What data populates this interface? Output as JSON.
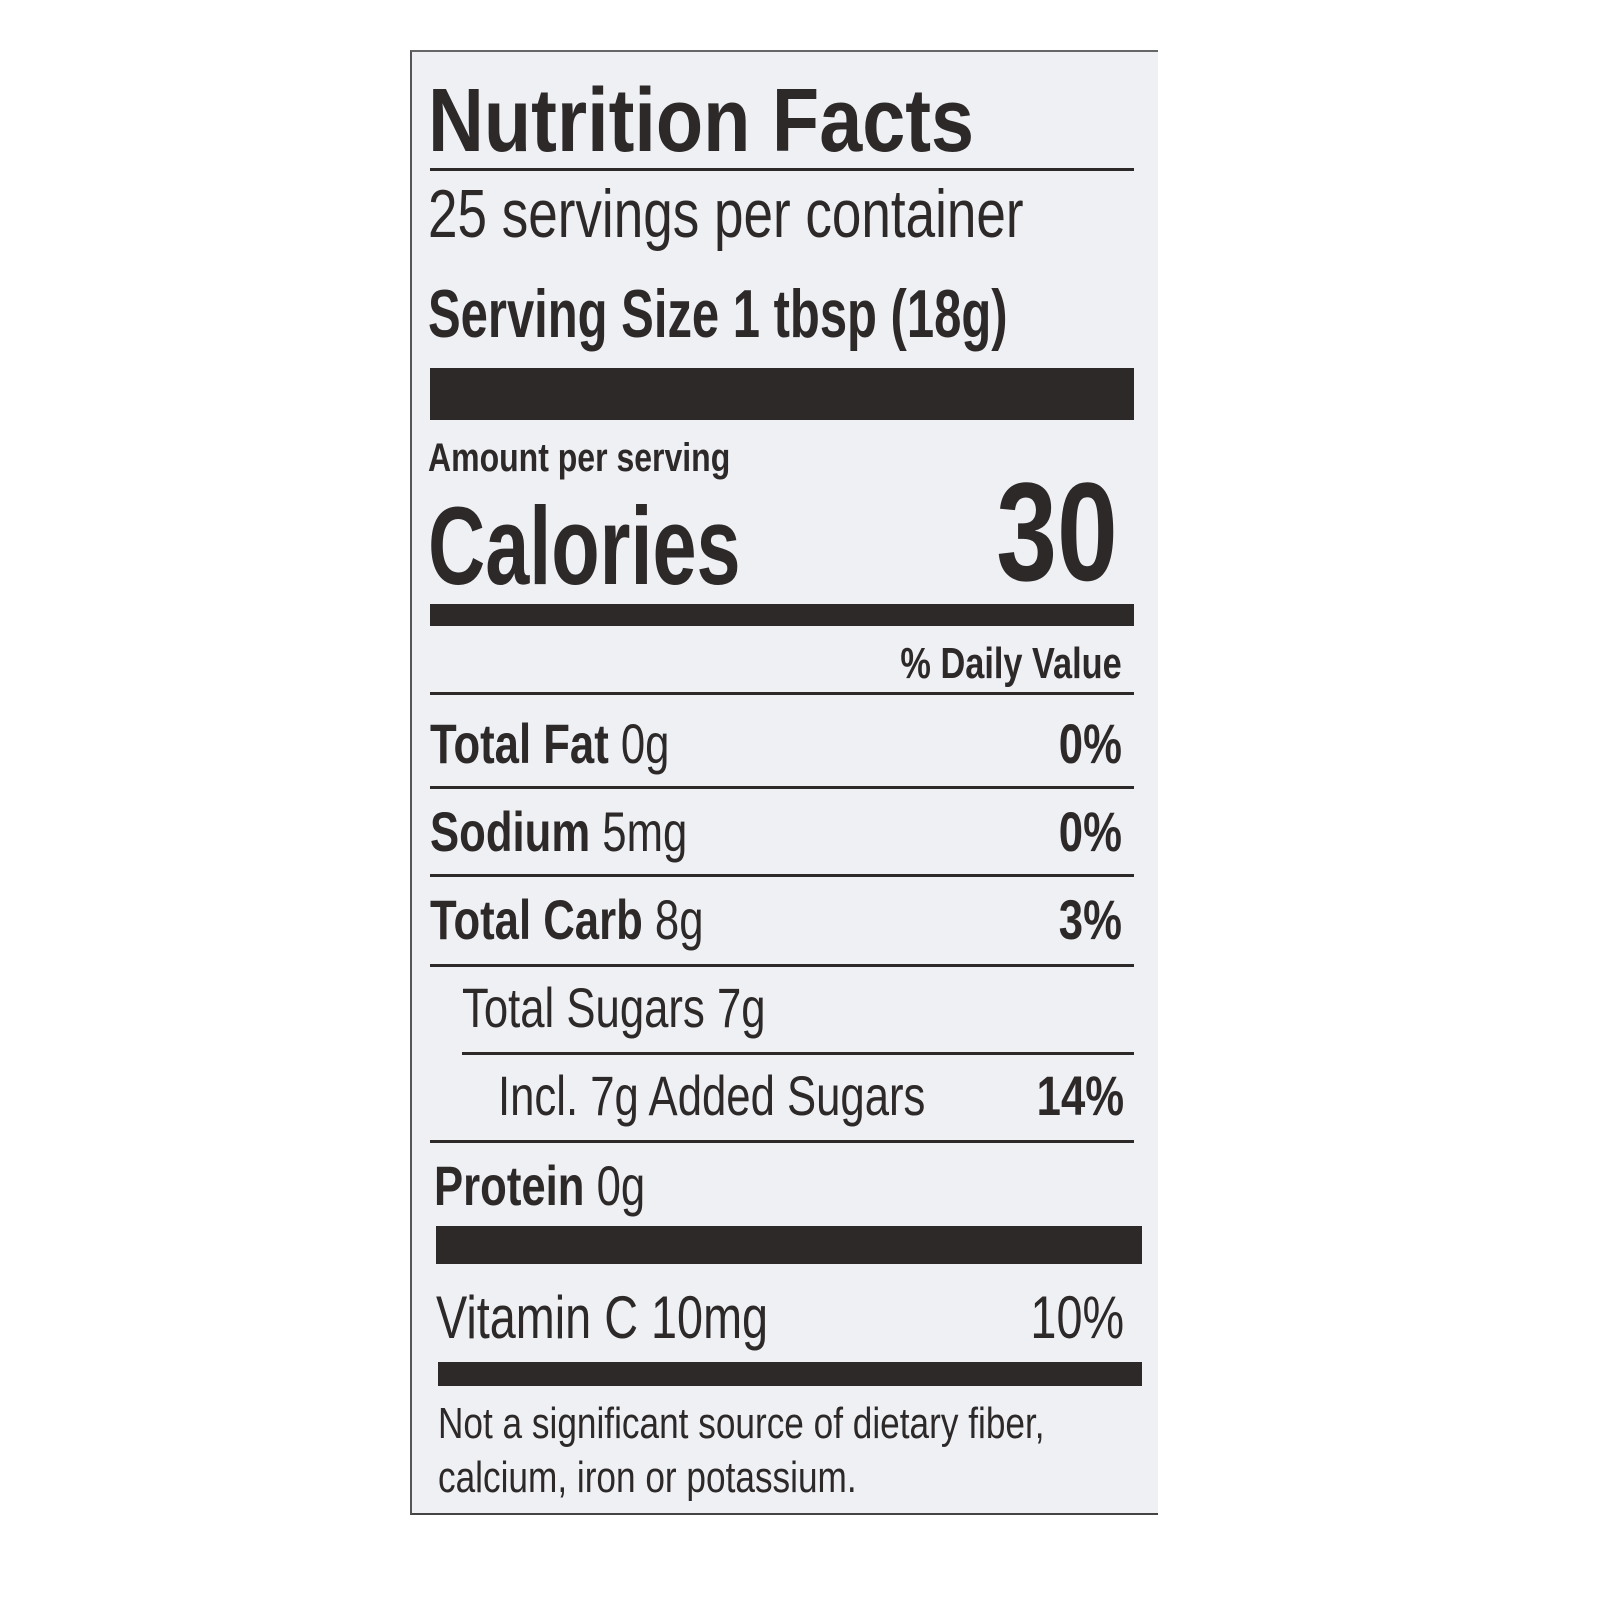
{
  "title": "Nutrition Facts",
  "servings_per_container": "25 servings per container",
  "serving_size": {
    "label": "Serving Size",
    "value": "1 tbsp (18g)"
  },
  "amount_per_serving": "Amount per serving",
  "calories": {
    "label": "Calories",
    "value": "30"
  },
  "daily_value_header": "% Daily Value",
  "nutrients": [
    {
      "name": "Total Fat",
      "amount": "0g",
      "dv": "0%"
    },
    {
      "name": "Sodium",
      "amount": "5mg",
      "dv": "0%"
    },
    {
      "name": "Total Carb",
      "amount": "8g",
      "dv": "3%"
    },
    {
      "name": "Total Sugars",
      "amount": "7g",
      "dv": ""
    },
    {
      "name": "Incl. 7g Added Sugars",
      "amount": "",
      "dv": "14%"
    },
    {
      "name": "Protein",
      "amount": "0g",
      "dv": ""
    }
  ],
  "vitamins": [
    {
      "name": "Vitamin C",
      "amount": "10mg",
      "dv": "10%"
    }
  ],
  "footnote_line1": "Not a significant source of dietary fiber,",
  "footnote_line2": "calcium, iron or potassium."
}
